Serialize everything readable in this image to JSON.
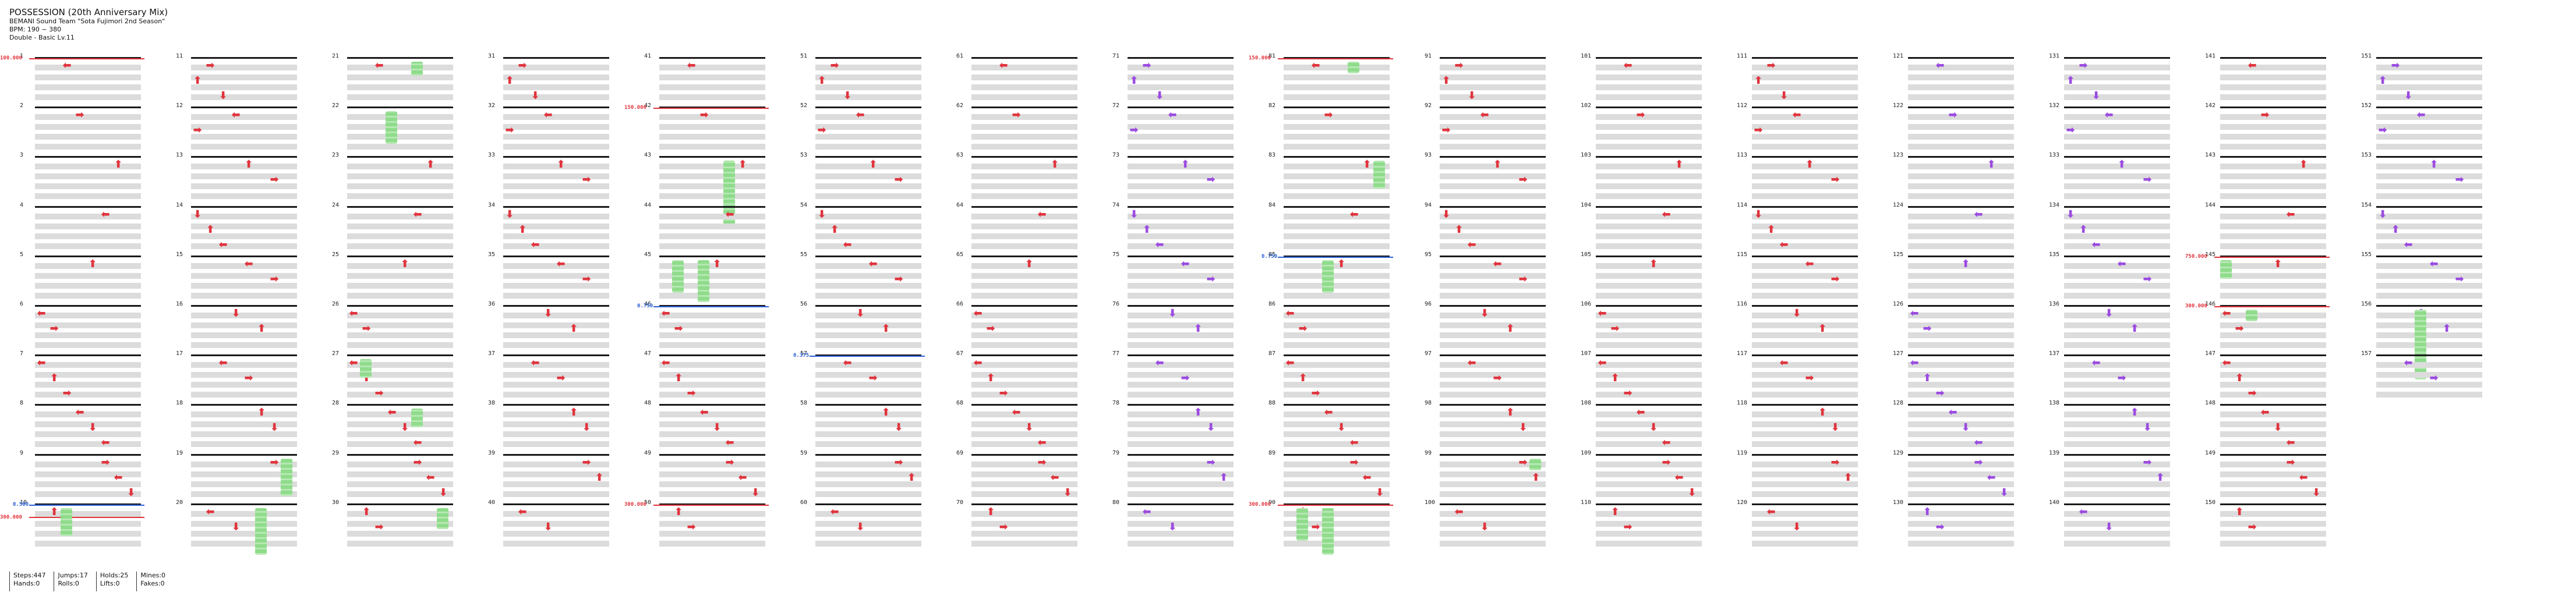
{
  "song": {
    "title": "POSSESSION (20th Anniversary Mix)",
    "artist": "BEMANI Sound Team \"Sota Fujimori 2nd Season\"",
    "bpm": "BPM: 190 ~ 380",
    "difficulty": "Double - Basic Lv.11"
  },
  "stats": {
    "col1": [
      "Steps:447",
      "Hands:0"
    ],
    "col2": [
      "Jumps:17",
      "Rolls:0"
    ],
    "col3": [
      "Holds:25",
      "Lifts:0"
    ],
    "col4": [
      "Mines:0",
      "Fakes:0"
    ]
  },
  "colors": {
    "tap": "#e0343d",
    "tap_alt": "#9b4be0",
    "tap_blue": "#2b61d8",
    "hold": "#8fdc8b",
    "speed": "#e0343d",
    "scroll": "#2b61d8"
  },
  "notes_per_measure": [
    [
      [
        2,
        "left"
      ]
    ],
    [
      [
        3,
        "right"
      ]
    ],
    [
      [
        6,
        "up"
      ]
    ],
    [
      [
        5,
        "left"
      ]
    ],
    [
      [
        4,
        "up"
      ]
    ],
    [
      [
        0,
        "left"
      ],
      [
        1,
        "right"
      ]
    ],
    [
      [
        0,
        "left"
      ],
      [
        1,
        "up"
      ],
      [
        2,
        "right"
      ]
    ],
    [
      [
        3,
        "left"
      ],
      [
        4,
        "down"
      ],
      [
        5,
        "left"
      ]
    ],
    [
      [
        5,
        "right"
      ],
      [
        6,
        "left"
      ],
      [
        7,
        "down"
      ]
    ],
    [
      [
        1,
        "up"
      ],
      [
        2,
        "right"
      ]
    ],
    [
      [
        1,
        "right"
      ],
      [
        0,
        "up"
      ],
      [
        2,
        "down"
      ]
    ],
    [
      [
        3,
        "left"
      ],
      [
        0,
        "right"
      ]
    ],
    [
      [
        4,
        "up"
      ],
      [
        6,
        "right"
      ]
    ],
    [
      [
        0,
        "down"
      ],
      [
        1,
        "up"
      ],
      [
        2,
        "left"
      ]
    ],
    [
      [
        4,
        "left"
      ],
      [
        6,
        "right"
      ]
    ],
    [
      [
        3,
        "down"
      ],
      [
        5,
        "up"
      ]
    ],
    [
      [
        2,
        "left"
      ],
      [
        4,
        "right"
      ]
    ],
    [
      [
        5,
        "up"
      ],
      [
        6,
        "down"
      ]
    ],
    [
      [
        6,
        "right"
      ],
      [
        7,
        "up"
      ]
    ],
    [
      [
        1,
        "left"
      ],
      [
        3,
        "down"
      ]
    ]
  ],
  "measures": [
    {
      "n": "1",
      "speed": "100.000"
    },
    {
      "n": "2"
    },
    {
      "n": "3"
    },
    {
      "n": "4"
    },
    {
      "n": "5"
    },
    {
      "n": "6"
    },
    {
      "n": "7"
    },
    {
      "n": "8"
    },
    {
      "n": "9"
    },
    {
      "n": "10",
      "scroll": "0.500",
      "speed": "300.000"
    },
    {
      "n": "11"
    },
    {
      "n": "12"
    },
    {
      "n": "13"
    },
    {
      "n": "14"
    },
    {
      "n": "15"
    },
    {
      "n": "16"
    },
    {
      "n": "17"
    },
    {
      "n": "18"
    },
    {
      "n": "19"
    },
    {
      "n": "20"
    },
    {
      "n": "21"
    },
    {
      "n": "22"
    },
    {
      "n": "23"
    },
    {
      "n": "24"
    },
    {
      "n": "25"
    },
    {
      "n": "26"
    },
    {
      "n": "27"
    },
    {
      "n": "28"
    },
    {
      "n": "29"
    },
    {
      "n": "30"
    },
    {
      "n": "31"
    },
    {
      "n": "32"
    },
    {
      "n": "33"
    },
    {
      "n": "34"
    },
    {
      "n": "35"
    },
    {
      "n": "36"
    },
    {
      "n": "37"
    },
    {
      "n": "38"
    },
    {
      "n": "39"
    },
    {
      "n": "40"
    },
    {
      "n": "41"
    },
    {
      "n": "42",
      "speed": "150.000"
    },
    {
      "n": "43"
    },
    {
      "n": "44"
    },
    {
      "n": "45"
    },
    {
      "n": "46",
      "scroll": "0.750"
    },
    {
      "n": "47"
    },
    {
      "n": "48"
    },
    {
      "n": "49"
    },
    {
      "n": "50",
      "speed": "300.000"
    },
    {
      "n": "51"
    },
    {
      "n": "52"
    },
    {
      "n": "53"
    },
    {
      "n": "54"
    },
    {
      "n": "55"
    },
    {
      "n": "56"
    },
    {
      "n": "57",
      "scroll": "0.375"
    },
    {
      "n": "58"
    },
    {
      "n": "59"
    },
    {
      "n": "60"
    },
    {
      "n": "61"
    },
    {
      "n": "62"
    },
    {
      "n": "63"
    },
    {
      "n": "64"
    },
    {
      "n": "65"
    },
    {
      "n": "66"
    },
    {
      "n": "67"
    },
    {
      "n": "68"
    },
    {
      "n": "69"
    },
    {
      "n": "70"
    },
    {
      "n": "71"
    },
    {
      "n": "72"
    },
    {
      "n": "73"
    },
    {
      "n": "74"
    },
    {
      "n": "75"
    },
    {
      "n": "76"
    },
    {
      "n": "77"
    },
    {
      "n": "78"
    },
    {
      "n": "79"
    },
    {
      "n": "80"
    },
    {
      "n": "81",
      "speed": "150.000"
    },
    {
      "n": "82"
    },
    {
      "n": "83"
    },
    {
      "n": "84"
    },
    {
      "n": "85",
      "scroll": "0.750"
    },
    {
      "n": "86"
    },
    {
      "n": "87"
    },
    {
      "n": "88"
    },
    {
      "n": "89"
    },
    {
      "n": "90",
      "speed": "300.000"
    },
    {
      "n": "91"
    },
    {
      "n": "92"
    },
    {
      "n": "93"
    },
    {
      "n": "94"
    },
    {
      "n": "95"
    },
    {
      "n": "96"
    },
    {
      "n": "97"
    },
    {
      "n": "98"
    },
    {
      "n": "99"
    },
    {
      "n": "100"
    },
    {
      "n": "101"
    },
    {
      "n": "102"
    },
    {
      "n": "103"
    },
    {
      "n": "104"
    },
    {
      "n": "105"
    },
    {
      "n": "106"
    },
    {
      "n": "107"
    },
    {
      "n": "108"
    },
    {
      "n": "109"
    },
    {
      "n": "110"
    },
    {
      "n": "111"
    },
    {
      "n": "112"
    },
    {
      "n": "113"
    },
    {
      "n": "114"
    },
    {
      "n": "115"
    },
    {
      "n": "116"
    },
    {
      "n": "117"
    },
    {
      "n": "118"
    },
    {
      "n": "119"
    },
    {
      "n": "120"
    },
    {
      "n": "121"
    },
    {
      "n": "122"
    },
    {
      "n": "123"
    },
    {
      "n": "124"
    },
    {
      "n": "125"
    },
    {
      "n": "126"
    },
    {
      "n": "127"
    },
    {
      "n": "128"
    },
    {
      "n": "129"
    },
    {
      "n": "130"
    },
    {
      "n": "131"
    },
    {
      "n": "132"
    },
    {
      "n": "133"
    },
    {
      "n": "134"
    },
    {
      "n": "135"
    },
    {
      "n": "136"
    },
    {
      "n": "137"
    },
    {
      "n": "138"
    },
    {
      "n": "139"
    },
    {
      "n": "140"
    },
    {
      "n": "141"
    },
    {
      "n": "142"
    },
    {
      "n": "143"
    },
    {
      "n": "144"
    },
    {
      "n": "145",
      "speed": "750.000"
    },
    {
      "n": "146",
      "speed": "300.000"
    },
    {
      "n": "147"
    },
    {
      "n": "148"
    },
    {
      "n": "149"
    },
    {
      "n": "150"
    },
    {
      "n": "151"
    },
    {
      "n": "152"
    },
    {
      "n": "153"
    },
    {
      "n": "154"
    },
    {
      "n": "155"
    },
    {
      "n": "156"
    },
    {
      "n": "157"
    }
  ],
  "column_colors": [
    "red",
    "red",
    "red",
    "red",
    "red",
    "red",
    "red",
    "purple",
    "red",
    "red",
    "red",
    "red",
    "purple",
    "purple",
    "red",
    "purple"
  ],
  "holds": [
    {
      "m": "10",
      "lane": 2,
      "len": 1.2
    },
    {
      "m": "19",
      "lane": 7,
      "len": 1.6
    },
    {
      "m": "20",
      "lane": 5,
      "len": 2.0
    },
    {
      "m": "21",
      "lane": 5,
      "len": 0.6
    },
    {
      "m": "22",
      "lane": 3,
      "len": 1.4
    },
    {
      "m": "27",
      "lane": 1,
      "len": 0.8
    },
    {
      "m": "28",
      "lane": 5,
      "len": 0.8
    },
    {
      "m": "30",
      "lane": 7,
      "len": 0.9
    },
    {
      "m": "43",
      "lane": 5,
      "len": 2.8
    },
    {
      "m": "45",
      "lane": 1,
      "len": 1.4
    },
    {
      "m": "45",
      "lane": 3,
      "len": 1.8
    },
    {
      "m": "83",
      "lane": 7,
      "len": 1.2
    },
    {
      "m": "85",
      "lane": 3,
      "len": 1.4
    },
    {
      "m": "99",
      "lane": 7,
      "len": 0.5
    },
    {
      "m": "81",
      "lane": 5,
      "len": 0.5
    },
    {
      "m": "90",
      "lane": 1,
      "len": 1.4
    },
    {
      "m": "90",
      "lane": 3,
      "len": 2.0
    },
    {
      "m": "145",
      "lane": 0,
      "len": 0.8
    },
    {
      "m": "146",
      "lane": 2,
      "len": 0.5
    },
    {
      "m": "156",
      "lane": 3,
      "len": 3.0
    }
  ]
}
